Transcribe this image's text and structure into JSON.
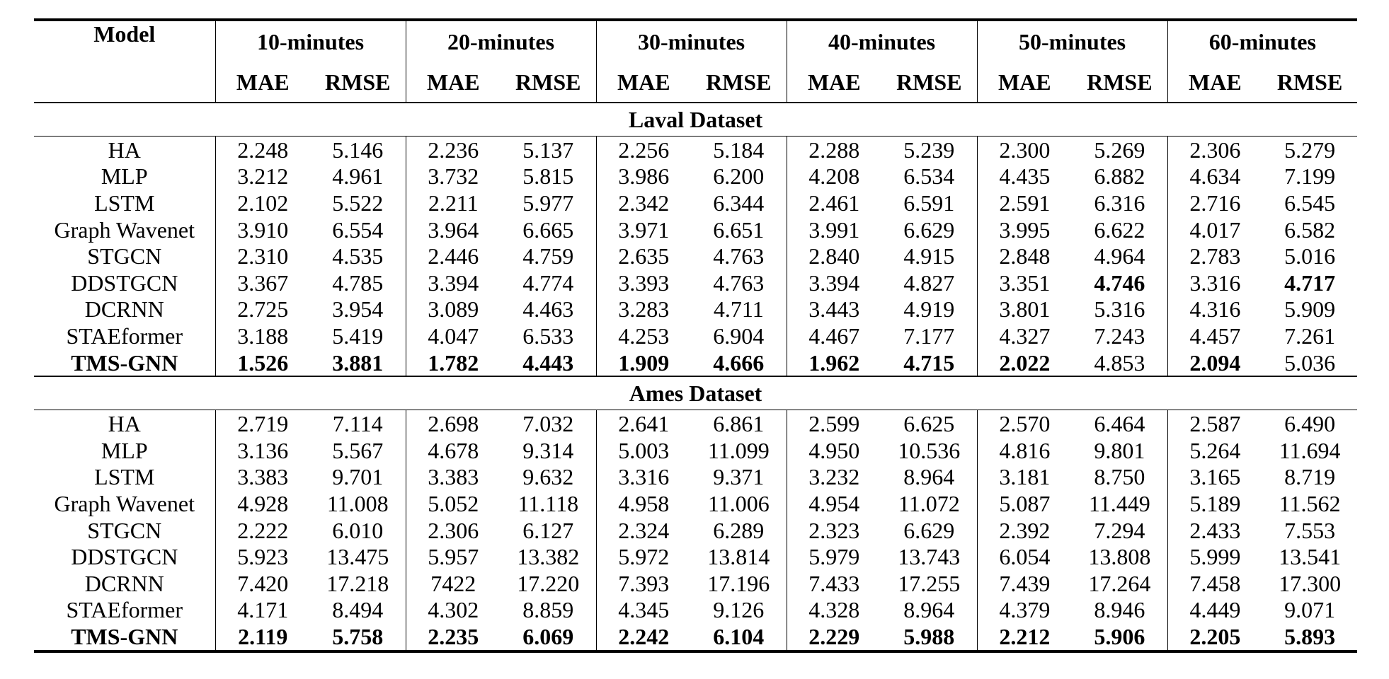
{
  "header": {
    "model": "Model",
    "groups": [
      "10-minutes",
      "20-minutes",
      "30-minutes",
      "40-minutes",
      "50-minutes",
      "60-minutes"
    ],
    "metrics": [
      "MAE",
      "RMSE",
      "MAE",
      "RMSE",
      "MAE",
      "RMSE",
      "MAE",
      "RMSE",
      "MAE",
      "RMSE",
      "MAE",
      "RMSE"
    ]
  },
  "sections": [
    {
      "title": "Laval Dataset",
      "rows": [
        {
          "model": "HA",
          "bold_model": false,
          "values": [
            "2.248",
            "5.146",
            "2.236",
            "5.137",
            "2.256",
            "5.184",
            "2.288",
            "5.239",
            "2.300",
            "5.269",
            "2.306",
            "5.279"
          ],
          "bold": []
        },
        {
          "model": "MLP",
          "bold_model": false,
          "values": [
            "3.212",
            "4.961",
            "3.732",
            "5.815",
            "3.986",
            "6.200",
            "4.208",
            "6.534",
            "4.435",
            "6.882",
            "4.634",
            "7.199"
          ],
          "bold": []
        },
        {
          "model": "LSTM",
          "bold_model": false,
          "values": [
            "2.102",
            "5.522",
            "2.211",
            "5.977",
            "2.342",
            "6.344",
            "2.461",
            "6.591",
            "2.591",
            "6.316",
            "2.716",
            "6.545"
          ],
          "bold": []
        },
        {
          "model": "Graph Wavenet",
          "bold_model": false,
          "values": [
            "3.910",
            "6.554",
            "3.964",
            "6.665",
            "3.971",
            "6.651",
            "3.991",
            "6.629",
            "3.995",
            "6.622",
            "4.017",
            "6.582"
          ],
          "bold": []
        },
        {
          "model": "STGCN",
          "bold_model": false,
          "values": [
            "2.310",
            "4.535",
            "2.446",
            "4.759",
            "2.635",
            "4.763",
            "2.840",
            "4.915",
            "2.848",
            "4.964",
            "2.783",
            "5.016"
          ],
          "bold": []
        },
        {
          "model": "DDSTGCN",
          "bold_model": false,
          "values": [
            "3.367",
            "4.785",
            "3.394",
            "4.774",
            "3.393",
            "4.763",
            "3.394",
            "4.827",
            "3.351",
            "4.746",
            "3.316",
            "4.717"
          ],
          "bold": [
            9,
            11
          ]
        },
        {
          "model": "DCRNN",
          "bold_model": false,
          "values": [
            "2.725",
            "3.954",
            "3.089",
            "4.463",
            "3.283",
            "4.711",
            "3.443",
            "4.919",
            "3.801",
            "5.316",
            "4.316",
            "5.909"
          ],
          "bold": []
        },
        {
          "model": "STAEformer",
          "bold_model": false,
          "values": [
            "3.188",
            "5.419",
            "4.047",
            "6.533",
            "4.253",
            "6.904",
            "4.467",
            "7.177",
            "4.327",
            "7.243",
            "4.457",
            "7.261"
          ],
          "bold": []
        },
        {
          "model": "TMS-GNN",
          "bold_model": true,
          "values": [
            "1.526",
            "3.881",
            "1.782",
            "4.443",
            "1.909",
            "4.666",
            "1.962",
            "4.715",
            "2.022",
            "4.853",
            "2.094",
            "5.036"
          ],
          "bold": [
            0,
            1,
            2,
            3,
            4,
            5,
            6,
            7,
            8,
            10
          ]
        }
      ]
    },
    {
      "title": "Ames Dataset",
      "rows": [
        {
          "model": "HA",
          "bold_model": false,
          "values": [
            "2.719",
            "7.114",
            "2.698",
            "7.032",
            "2.641",
            "6.861",
            "2.599",
            "6.625",
            "2.570",
            "6.464",
            "2.587",
            "6.490"
          ],
          "bold": []
        },
        {
          "model": "MLP",
          "bold_model": false,
          "values": [
            "3.136",
            "5.567",
            "4.678",
            "9.314",
            "5.003",
            "11.099",
            "4.950",
            "10.536",
            "4.816",
            "9.801",
            "5.264",
            "11.694"
          ],
          "bold": []
        },
        {
          "model": "LSTM",
          "bold_model": false,
          "values": [
            "3.383",
            "9.701",
            "3.383",
            "9.632",
            "3.316",
            "9.371",
            "3.232",
            "8.964",
            "3.181",
            "8.750",
            "3.165",
            "8.719"
          ],
          "bold": []
        },
        {
          "model": "Graph Wavenet",
          "bold_model": false,
          "values": [
            "4.928",
            "11.008",
            "5.052",
            "11.118",
            "4.958",
            "11.006",
            "4.954",
            "11.072",
            "5.087",
            "11.449",
            "5.189",
            "11.562"
          ],
          "bold": []
        },
        {
          "model": "STGCN",
          "bold_model": false,
          "values": [
            "2.222",
            "6.010",
            "2.306",
            "6.127",
            "2.324",
            "6.289",
            "2.323",
            "6.629",
            "2.392",
            "7.294",
            "2.433",
            "7.553"
          ],
          "bold": []
        },
        {
          "model": "DDSTGCN",
          "bold_model": false,
          "values": [
            "5.923",
            "13.475",
            "5.957",
            "13.382",
            "5.972",
            "13.814",
            "5.979",
            "13.743",
            "6.054",
            "13.808",
            "5.999",
            "13.541"
          ],
          "bold": []
        },
        {
          "model": "DCRNN",
          "bold_model": false,
          "values": [
            "7.420",
            "17.218",
            "7422",
            "17.220",
            "7.393",
            "17.196",
            "7.433",
            "17.255",
            "7.439",
            "17.264",
            "7.458",
            "17.300"
          ],
          "bold": []
        },
        {
          "model": "STAEformer",
          "bold_model": false,
          "values": [
            "4.171",
            "8.494",
            "4.302",
            "8.859",
            "4.345",
            "9.126",
            "4.328",
            "8.964",
            "4.379",
            "8.946",
            "4.449",
            "9.071"
          ],
          "bold": []
        },
        {
          "model": "TMS-GNN",
          "bold_model": true,
          "values": [
            "2.119",
            "5.758",
            "2.235",
            "6.069",
            "2.242",
            "6.104",
            "2.229",
            "5.988",
            "2.212",
            "5.906",
            "2.205",
            "5.893"
          ],
          "bold": [
            0,
            1,
            2,
            3,
            4,
            5,
            6,
            7,
            8,
            9,
            10,
            11
          ]
        }
      ]
    }
  ]
}
